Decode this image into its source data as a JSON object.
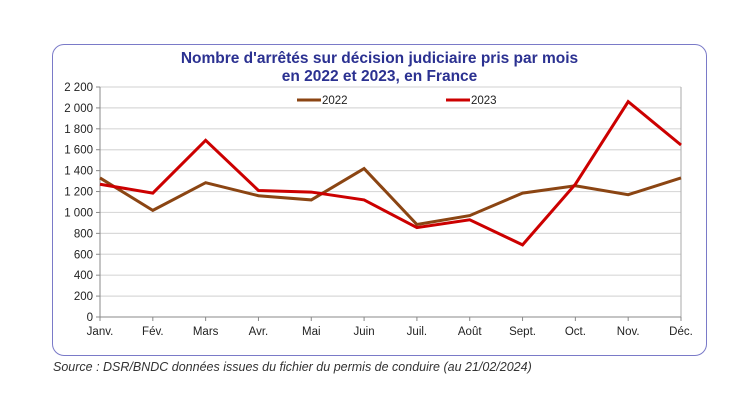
{
  "chart_data": {
    "type": "line",
    "title": "Nombre d'arrêtés sur décision judiciaire pris par mois",
    "subtitle": "en 2022 et 2023, en France",
    "categories": [
      "Janv.",
      "Fév.",
      "Mars",
      "Avr.",
      "Mai",
      "Juin",
      "Juil.",
      "Août",
      "Sept.",
      "Oct.",
      "Nov.",
      "Déc."
    ],
    "series": [
      {
        "name": "2022",
        "color": "#8b4513",
        "values": [
          1330,
          1020,
          1285,
          1160,
          1120,
          1420,
          885,
          970,
          1185,
          1255,
          1170,
          1330
        ]
      },
      {
        "name": "2023",
        "color": "#cc0000",
        "values": [
          1270,
          1185,
          1690,
          1210,
          1195,
          1120,
          855,
          930,
          690,
          1270,
          2060,
          1645
        ]
      }
    ],
    "ylim": [
      0,
      2200
    ],
    "yticks": [
      0,
      200,
      400,
      600,
      800,
      1000,
      1200,
      1400,
      1600,
      1800,
      2000,
      2200
    ],
    "ytick_labels": [
      "0",
      "200",
      "400",
      "600",
      "800",
      "1 000",
      "1 200",
      "1 400",
      "1 600",
      "1 800",
      "2 000",
      "2 200"
    ],
    "grid": true,
    "legend": "top",
    "xlabel": "",
    "ylabel": ""
  },
  "source": "Source : DSR/BNDC données issues du fichier du permis de conduire (au 21/02/2024)"
}
